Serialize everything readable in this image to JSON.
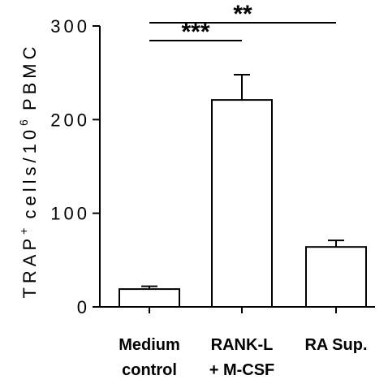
{
  "chart_data": {
    "type": "bar",
    "ylabel": {
      "prefix": "TRAP",
      "sup1": "+",
      "middle": " cells/10",
      "sup2": "6",
      "suffix": " PBMC"
    },
    "ylim": [
      0,
      300
    ],
    "yticks": [
      "0",
      "100",
      "200",
      "300"
    ],
    "categories": [
      {
        "line1": "Medium",
        "line2": "control"
      },
      {
        "line1": "RANK-L",
        "line2": "+ M-CSF"
      },
      {
        "line1": "RA Sup.",
        "line2": ""
      }
    ],
    "values": [
      19,
      221,
      64
    ],
    "errors": [
      3,
      27,
      7
    ],
    "significance": [
      {
        "label": "***",
        "from": 0,
        "to": 1
      },
      {
        "label": "**",
        "from": 0,
        "to": 2
      }
    ]
  }
}
